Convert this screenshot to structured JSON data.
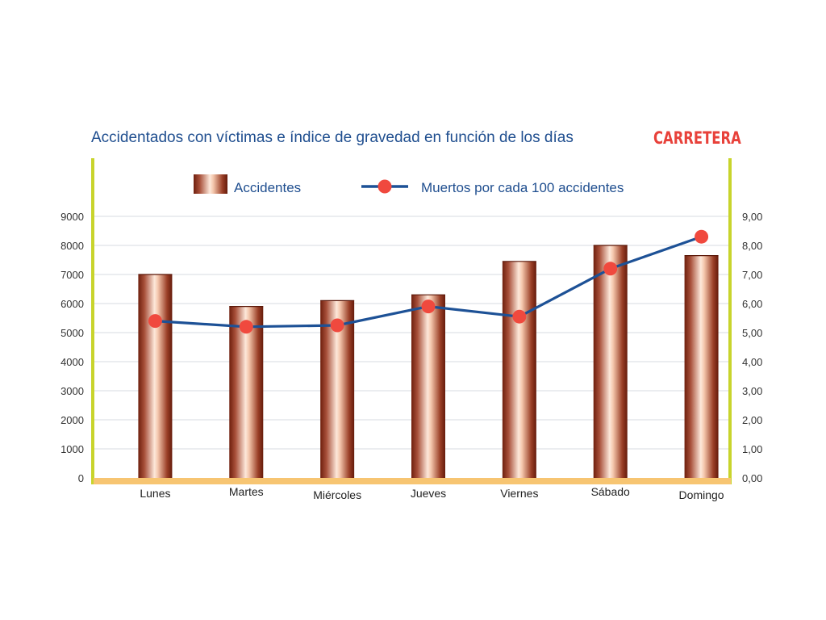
{
  "chart_data": {
    "type": "bar",
    "title": "Accidentados con víctimas e índice de gravedad en función de los días",
    "title_tag": "CARRETERA",
    "categories": [
      "Lunes",
      "Martes",
      "Miércoles",
      "Jueves",
      "Viernes",
      "Sábado",
      "Domingo"
    ],
    "series": [
      {
        "name": "Accidentes",
        "type": "bar",
        "axis": "left",
        "values": [
          7000,
          5900,
          6100,
          6300,
          7450,
          8000,
          7650
        ]
      },
      {
        "name": "Muertos por cada 100 accidentes",
        "type": "line",
        "axis": "right",
        "values": [
          5.4,
          5.2,
          5.25,
          5.9,
          5.55,
          7.2,
          8.3
        ]
      }
    ],
    "left_axis": {
      "ticks": [
        0,
        1000,
        2000,
        3000,
        4000,
        5000,
        6000,
        7000,
        8000,
        9000
      ],
      "tick_labels": [
        "0",
        "1000",
        "2000",
        "3000",
        "4000",
        "5000",
        "6000",
        "7000",
        "8000",
        "9000"
      ]
    },
    "right_axis": {
      "ticks": [
        0,
        1,
        2,
        3,
        4,
        5,
        6,
        7,
        8,
        9
      ],
      "tick_labels": [
        "0,00",
        "1,00",
        "2,00",
        "3,00",
        "4,00",
        "5,00",
        "6,00",
        "7,00",
        "8,00",
        "9,00"
      ]
    },
    "grid": true,
    "legend_position": "top-center",
    "colors": {
      "title": "#1f4e8f",
      "title_tag": "#e8413a",
      "bar_dark": "#7a2410",
      "bar_light": "#fbe3d3",
      "line": "#1d5196",
      "marker": "#f0493e",
      "axis_side": "#c8d42c",
      "baseline": "#f7c572",
      "grid": "#d7dbe2",
      "tick_text": "#333333"
    }
  }
}
